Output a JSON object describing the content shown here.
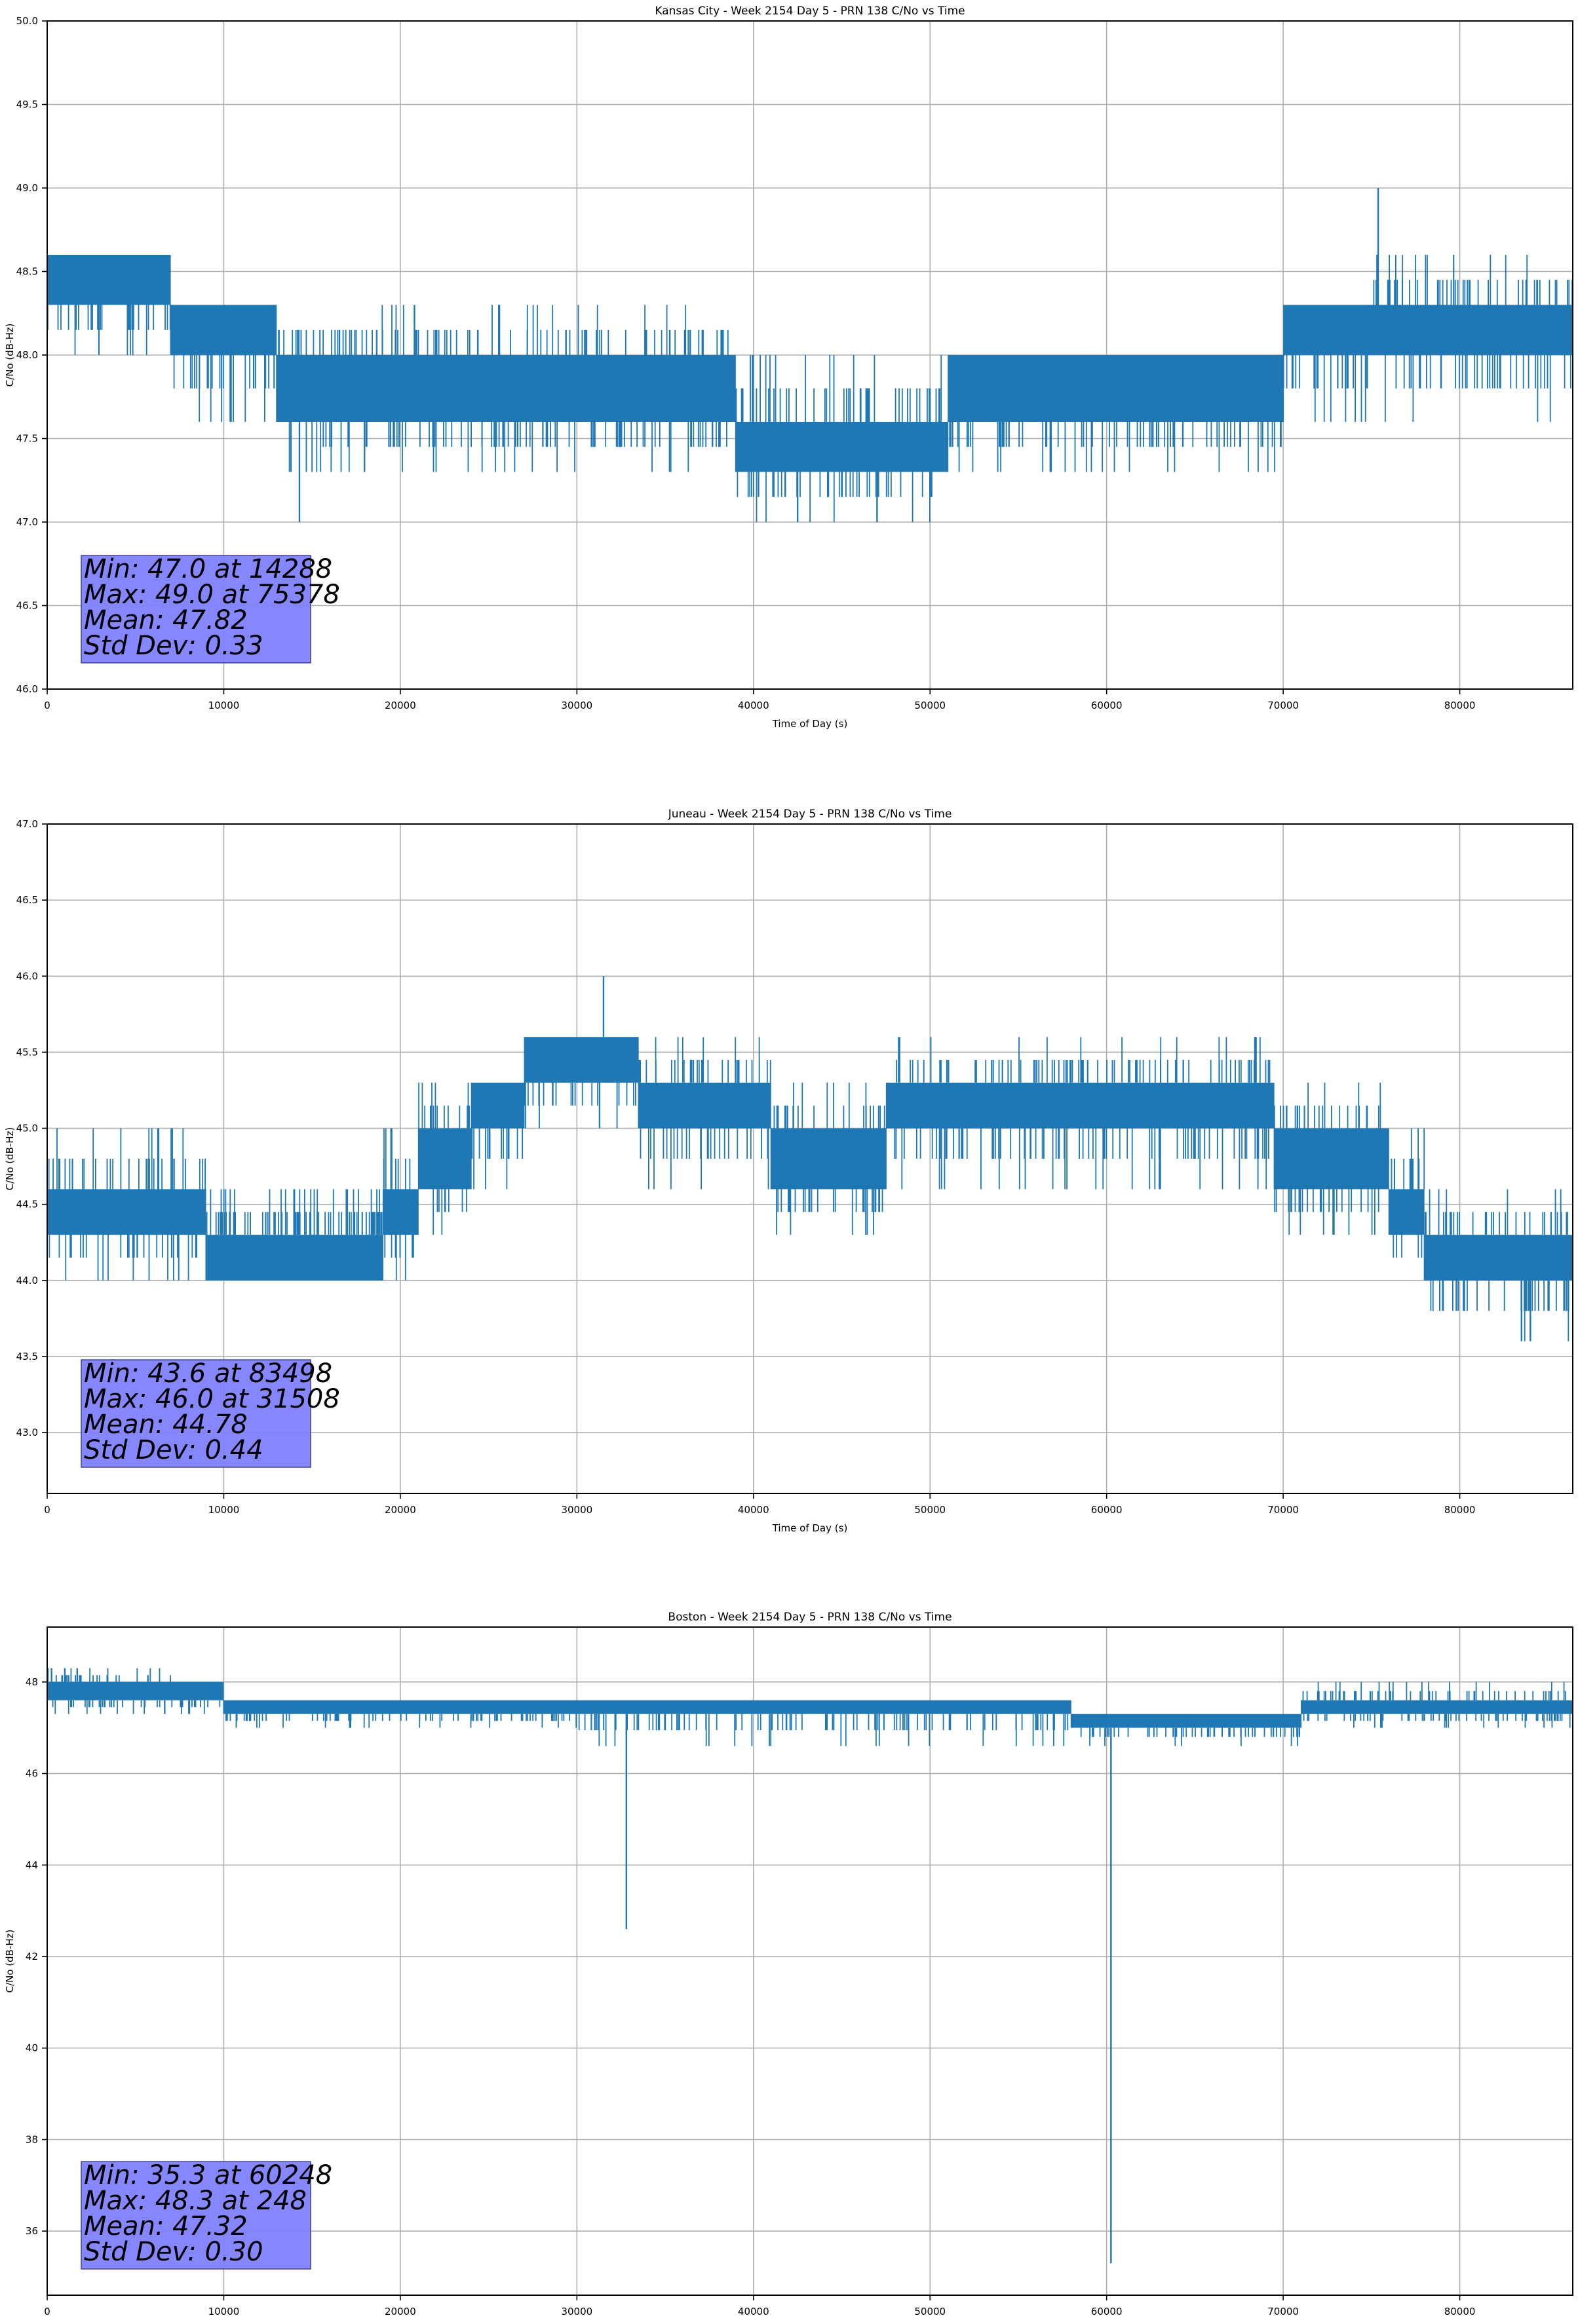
{
  "figure": {
    "line_color": "#1f77b4",
    "grid_color": "#b0b0b0",
    "stats_box_color": "#7f7fff"
  },
  "chart_data": [
    {
      "type": "line",
      "title": "Kansas City - Week 2154 Day 5 - PRN 138 C/No vs Time",
      "xlabel": "Time of Day (s)",
      "ylabel": "C/No (dB-Hz)",
      "xlim": [
        0,
        86400
      ],
      "ylim": [
        46.0,
        50.0
      ],
      "xticks": [
        0,
        10000,
        20000,
        30000,
        40000,
        50000,
        60000,
        70000,
        80000
      ],
      "xtick_labels": [
        "0",
        "10000",
        "20000",
        "30000",
        "40000",
        "50000",
        "60000",
        "70000",
        "80000"
      ],
      "yticks": [
        46.0,
        46.5,
        47.0,
        47.5,
        48.0,
        48.5,
        49.0,
        49.5,
        50.0
      ],
      "ytick_labels": [
        "46.0",
        "46.5",
        "47.0",
        "47.5",
        "48.0",
        "48.5",
        "49.0",
        "49.5",
        "50.0"
      ],
      "grid": true,
      "series": [
        {
          "name": "C/No",
          "bands": [
            {
              "x0": 0,
              "x1": 7000,
              "lo": 48.3,
              "hi": 48.6,
              "flo": 48.0,
              "fhi": 48.6
            },
            {
              "x0": 7000,
              "x1": 13000,
              "lo": 48.0,
              "hi": 48.3,
              "flo": 47.6,
              "fhi": 48.3
            },
            {
              "x0": 13000,
              "x1": 15500,
              "lo": 47.6,
              "hi": 48.0,
              "flo": 47.0,
              "fhi": 48.3
            },
            {
              "x0": 15500,
              "x1": 39000,
              "lo": 47.6,
              "hi": 48.0,
              "flo": 47.3,
              "fhi": 48.3
            },
            {
              "x0": 39000,
              "x1": 51000,
              "lo": 47.3,
              "hi": 47.6,
              "flo": 47.0,
              "fhi": 48.0
            },
            {
              "x0": 51000,
              "x1": 59000,
              "lo": 47.6,
              "hi": 48.0,
              "flo": 47.3,
              "fhi": 48.0
            },
            {
              "x0": 59000,
              "x1": 70000,
              "lo": 47.6,
              "hi": 48.0,
              "flo": 47.3,
              "fhi": 48.0
            },
            {
              "x0": 70000,
              "x1": 75000,
              "lo": 48.0,
              "hi": 48.3,
              "flo": 47.6,
              "fhi": 48.3
            },
            {
              "x0": 75000,
              "x1": 86400,
              "lo": 48.0,
              "hi": 48.3,
              "flo": 47.6,
              "fhi": 48.6
            }
          ],
          "spikes": [
            {
              "x": 75378,
              "y": 49.0
            },
            {
              "x": 14288,
              "y": 47.0
            },
            {
              "x": 20800,
              "y": 48.3
            },
            {
              "x": 42500,
              "y": 47.0
            },
            {
              "x": 47000,
              "y": 47.0
            }
          ]
        }
      ],
      "stats_lines": [
        "Min: 47.0 at 14288",
        "Max: 49.0 at 75378",
        "Mean: 47.82",
        "Std Dev: 0.33"
      ]
    },
    {
      "type": "line",
      "title": "Juneau - Week 2154 Day 5 - PRN 138 C/No vs Time",
      "xlabel": "Time of Day (s)",
      "ylabel": "C/No (dB-Hz)",
      "xlim": [
        0,
        86400
      ],
      "ylim": [
        42.6,
        47.0
      ],
      "xticks": [
        0,
        10000,
        20000,
        30000,
        40000,
        50000,
        60000,
        70000,
        80000
      ],
      "xtick_labels": [
        "0",
        "10000",
        "20000",
        "30000",
        "40000",
        "50000",
        "60000",
        "70000",
        "80000"
      ],
      "yticks": [
        43.0,
        43.5,
        44.0,
        44.5,
        45.0,
        45.5,
        46.0,
        46.5,
        47.0
      ],
      "ytick_labels": [
        "43.0",
        "43.5",
        "44.0",
        "44.5",
        "45.0",
        "45.5",
        "46.0",
        "46.5",
        "47.0"
      ],
      "grid": true,
      "series": [
        {
          "name": "C/No",
          "bands": [
            {
              "x0": 0,
              "x1": 9000,
              "lo": 44.3,
              "hi": 44.6,
              "flo": 44.0,
              "fhi": 45.0
            },
            {
              "x0": 9000,
              "x1": 19000,
              "lo": 44.0,
              "hi": 44.3,
              "flo": 44.0,
              "fhi": 44.6
            },
            {
              "x0": 19000,
              "x1": 21000,
              "lo": 44.3,
              "hi": 44.6,
              "flo": 44.0,
              "fhi": 45.0
            },
            {
              "x0": 21000,
              "x1": 24000,
              "lo": 44.6,
              "hi": 45.0,
              "flo": 44.3,
              "fhi": 45.3
            },
            {
              "x0": 24000,
              "x1": 27000,
              "lo": 45.0,
              "hi": 45.3,
              "flo": 44.6,
              "fhi": 45.3
            },
            {
              "x0": 27000,
              "x1": 33500,
              "lo": 45.3,
              "hi": 45.6,
              "flo": 45.0,
              "fhi": 45.6
            },
            {
              "x0": 33500,
              "x1": 41000,
              "lo": 45.0,
              "hi": 45.3,
              "flo": 44.6,
              "fhi": 45.6
            },
            {
              "x0": 41000,
              "x1": 47500,
              "lo": 44.6,
              "hi": 45.0,
              "flo": 44.3,
              "fhi": 45.3
            },
            {
              "x0": 47500,
              "x1": 58000,
              "lo": 45.0,
              "hi": 45.3,
              "flo": 44.6,
              "fhi": 45.6
            },
            {
              "x0": 58000,
              "x1": 69500,
              "lo": 45.0,
              "hi": 45.3,
              "flo": 44.6,
              "fhi": 45.6
            },
            {
              "x0": 69500,
              "x1": 76000,
              "lo": 44.6,
              "hi": 45.0,
              "flo": 44.3,
              "fhi": 45.3
            },
            {
              "x0": 76000,
              "x1": 78000,
              "lo": 44.3,
              "hi": 44.6,
              "flo": 44.0,
              "fhi": 45.0
            },
            {
              "x0": 78000,
              "x1": 86400,
              "lo": 44.0,
              "hi": 44.3,
              "flo": 43.6,
              "fhi": 44.6
            }
          ],
          "spikes": [
            {
              "x": 31508,
              "y": 46.0
            },
            {
              "x": 83498,
              "y": 43.6
            },
            {
              "x": 84000,
              "y": 43.6
            },
            {
              "x": 68400,
              "y": 45.6
            }
          ]
        }
      ],
      "stats_lines": [
        "Min: 43.6 at 83498",
        "Max: 46.0 at 31508",
        "Mean: 44.78",
        "Std Dev: 0.44"
      ]
    },
    {
      "type": "line",
      "title": "Boston - Week 2154 Day 5 - PRN 138 C/No vs Time",
      "xlabel": "Time of Day (s)",
      "ylabel": "C/No (dB-Hz)",
      "xlim": [
        0,
        86400
      ],
      "ylim": [
        34.6,
        49.2
      ],
      "xticks": [
        0,
        10000,
        20000,
        30000,
        40000,
        50000,
        60000,
        70000,
        80000
      ],
      "xtick_labels": [
        "0",
        "10000",
        "20000",
        "30000",
        "40000",
        "50000",
        "60000",
        "70000",
        "80000"
      ],
      "yticks": [
        36,
        38,
        40,
        42,
        44,
        46,
        48
      ],
      "ytick_labels": [
        "36",
        "38",
        "40",
        "42",
        "44",
        "46",
        "48"
      ],
      "grid": true,
      "series": [
        {
          "name": "C/No",
          "bands": [
            {
              "x0": 0,
              "x1": 7000,
              "lo": 47.6,
              "hi": 48.0,
              "flo": 47.3,
              "fhi": 48.3
            },
            {
              "x0": 7000,
              "x1": 10000,
              "lo": 47.6,
              "hi": 48.0,
              "flo": 47.3,
              "fhi": 48.0
            },
            {
              "x0": 10000,
              "x1": 30000,
              "lo": 47.3,
              "hi": 47.6,
              "flo": 47.0,
              "fhi": 47.6
            },
            {
              "x0": 30000,
              "x1": 58000,
              "lo": 47.3,
              "hi": 47.6,
              "flo": 46.6,
              "fhi": 47.6
            },
            {
              "x0": 58000,
              "x1": 60000,
              "lo": 47.0,
              "hi": 47.3,
              "flo": 46.6,
              "fhi": 47.3
            },
            {
              "x0": 60000,
              "x1": 71000,
              "lo": 47.0,
              "hi": 47.3,
              "flo": 46.6,
              "fhi": 47.3
            },
            {
              "x0": 71000,
              "x1": 86400,
              "lo": 47.3,
              "hi": 47.6,
              "flo": 47.0,
              "fhi": 48.0
            }
          ],
          "spikes": [
            {
              "x": 60248,
              "y": 35.3
            },
            {
              "x": 32800,
              "y": 42.6
            },
            {
              "x": 248,
              "y": 48.3
            },
            {
              "x": 1000,
              "y": 48.3
            },
            {
              "x": 1700,
              "y": 48.3
            }
          ]
        }
      ],
      "stats_lines": [
        "Min: 35.3 at 60248",
        "Max: 48.3 at 248",
        "Mean: 47.32",
        "Std Dev: 0.30"
      ]
    }
  ]
}
